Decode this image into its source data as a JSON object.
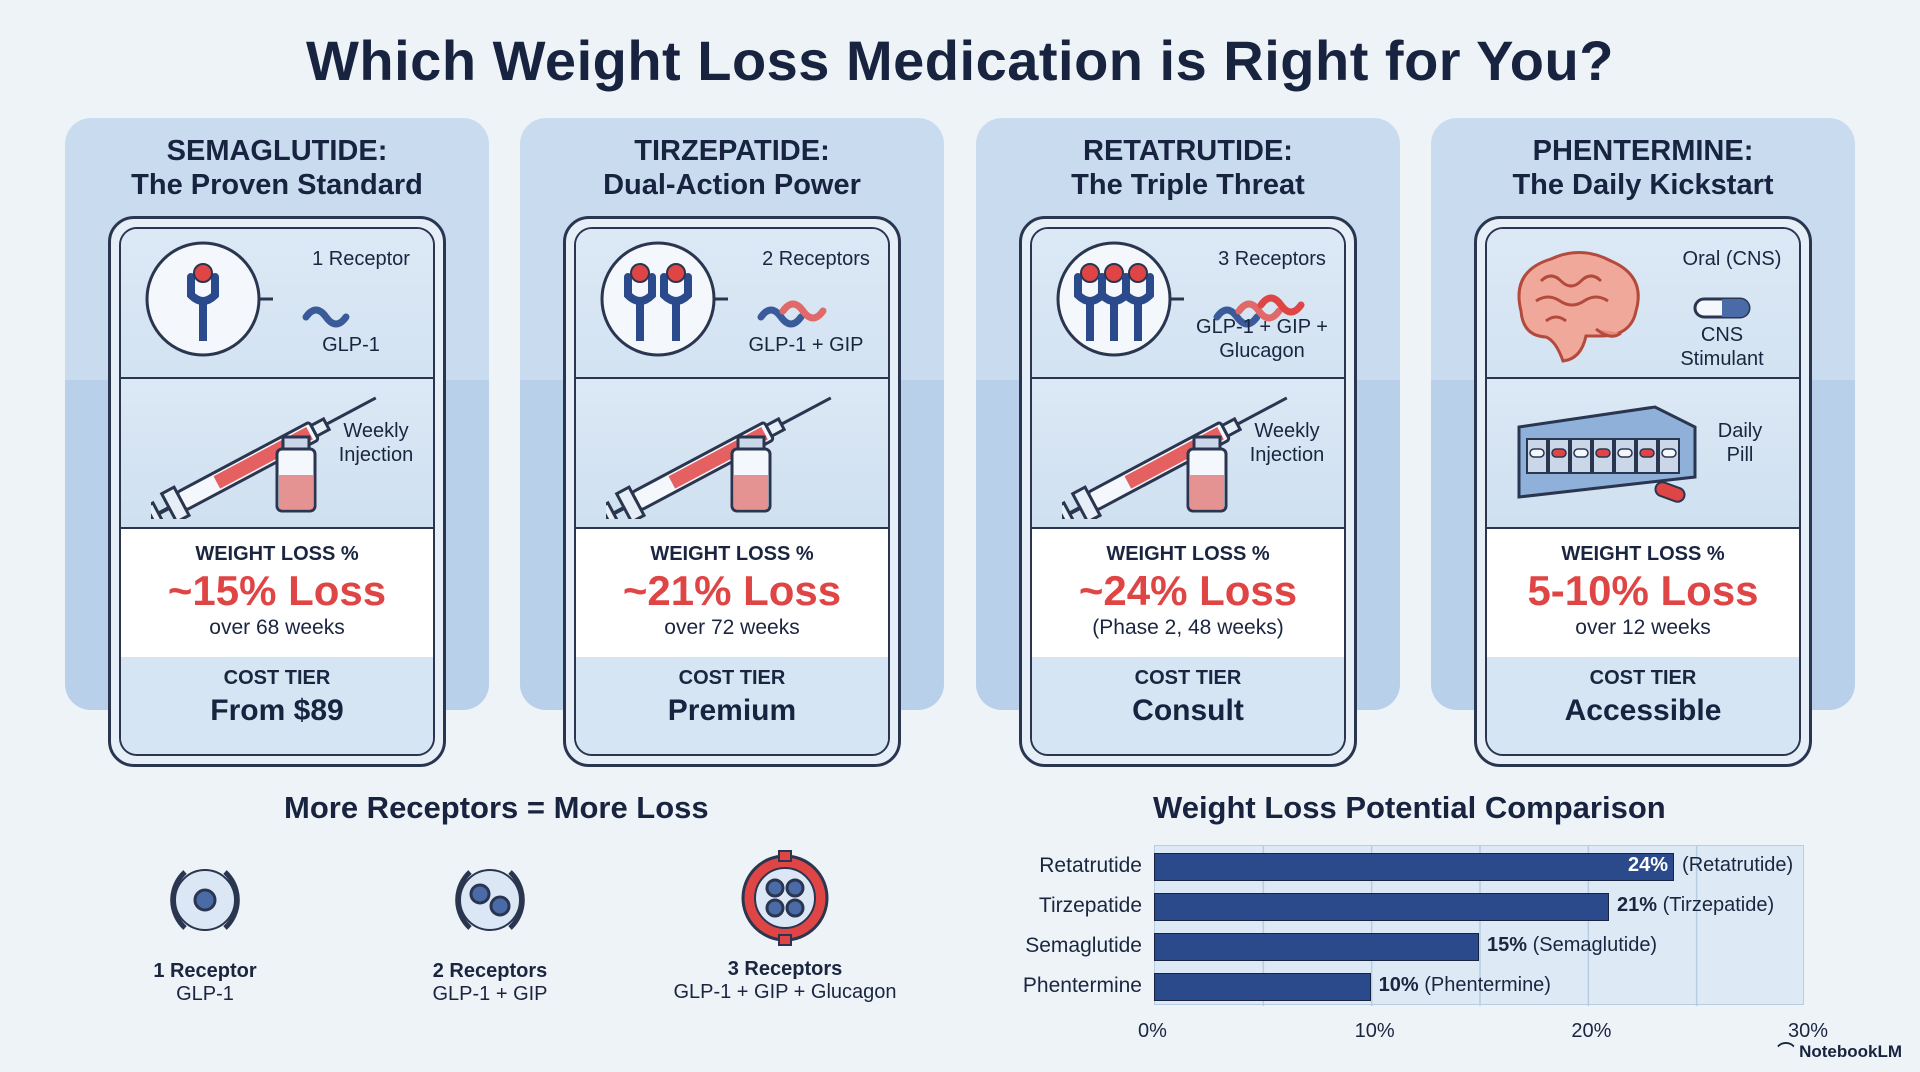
{
  "title": "Which Weight Loss Medication is Right for You?",
  "cards": [
    {
      "name": "SEMAGLUTIDE:",
      "tagline": "The Proven Standard",
      "receptor_count": "1 Receptor",
      "receptor_target": "GLP-1",
      "delivery": "Weekly Injection",
      "weight_label": "WEIGHT LOSS %",
      "weight_value": "~15% Loss",
      "weight_sub": "over 68 weeks",
      "cost_label": "COST TIER",
      "cost_value": "From $89"
    },
    {
      "name": "TIRZEPATIDE:",
      "tagline": "Dual-Action Power",
      "receptor_count": "2 Receptors",
      "receptor_target": "GLP-1 + GIP",
      "delivery": "",
      "weight_label": "WEIGHT LOSS %",
      "weight_value": "~21% Loss",
      "weight_sub": "over 72 weeks",
      "cost_label": "COST TIER",
      "cost_value": "Premium"
    },
    {
      "name": "RETATRUTIDE:",
      "tagline": "The Triple Threat",
      "receptor_count": "3 Receptors",
      "receptor_target": "GLP-1 + GIP + Glucagon",
      "delivery": "Weekly Injection",
      "weight_label": "WEIGHT LOSS %",
      "weight_value": "~24% Loss",
      "weight_sub": "(Phase 2, 48 weeks)",
      "cost_label": "COST TIER",
      "cost_value": "Consult"
    },
    {
      "name": "PHENTERMINE:",
      "tagline": "The Daily Kickstart",
      "receptor_count": "Oral (CNS)",
      "receptor_target": "CNS Stimulant",
      "delivery": "Daily Pill",
      "weight_label": "WEIGHT LOSS %",
      "weight_value": "5-10% Loss",
      "weight_sub": "over 12 weeks",
      "cost_label": "COST TIER",
      "cost_value": "Accessible"
    }
  ],
  "receptors": {
    "title": "More Receptors = More Loss",
    "items": [
      {
        "name": "1 Receptor",
        "sub": "GLP-1"
      },
      {
        "name": "2 Receptors",
        "sub": "GLP-1 + GIP"
      },
      {
        "name": "3 Receptors",
        "sub": "GLP-1 + GIP + Glucagon"
      }
    ]
  },
  "chart_data": {
    "type": "bar",
    "title": "Weight Loss Potential Comparison",
    "categories": [
      "Retatrutide",
      "Tirzepatide",
      "Semaglutide",
      "Phentermine"
    ],
    "values": [
      24,
      21,
      15,
      10
    ],
    "value_labels": [
      "24%",
      "21%",
      "15%",
      "10%"
    ],
    "annotations": [
      "(Retatrutide)",
      "(Tirzepatide)",
      "(Semaglutide)",
      "(Phentermine)"
    ],
    "xticks": [
      "0%",
      "10%",
      "20%",
      "30%"
    ],
    "xlim": [
      0,
      30
    ],
    "orientation": "horizontal",
    "grid": true,
    "bar_color": "#2b4a8b"
  },
  "brand": "NotebookLM",
  "colors": {
    "accent": "#e04545",
    "navy": "#17233f",
    "bar": "#2b4a8b"
  }
}
